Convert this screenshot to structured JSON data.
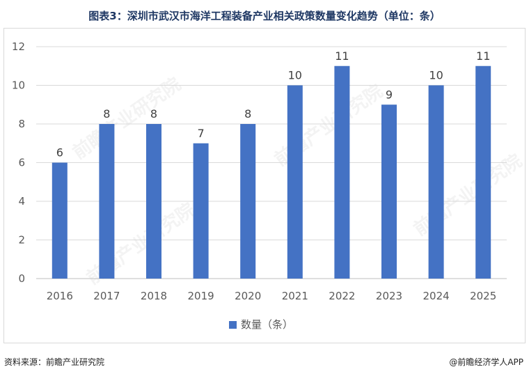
{
  "title": "图表3：深圳市武汉市海洋工程装备产业相关政策数量变化趋势（单位：条）",
  "chart_data": {
    "type": "bar",
    "categories": [
      "2016",
      "2017",
      "2018",
      "2019",
      "2020",
      "2021",
      "2022",
      "2023",
      "2024",
      "2025"
    ],
    "series": [
      {
        "name": "数量（条）",
        "values": [
          6,
          8,
          8,
          7,
          8,
          10,
          11,
          9,
          10,
          11
        ]
      }
    ],
    "yticks": [
      0,
      2,
      4,
      6,
      8,
      10,
      12
    ],
    "ylim": [
      0,
      12
    ],
    "grid": true,
    "legend": "bottom",
    "bar_color": "#4472c4"
  },
  "footer": {
    "source": "资料来源：前瞻产业研究院",
    "brand": "@前瞻经济学人APP"
  },
  "watermark_text": "前瞻产业研究院"
}
